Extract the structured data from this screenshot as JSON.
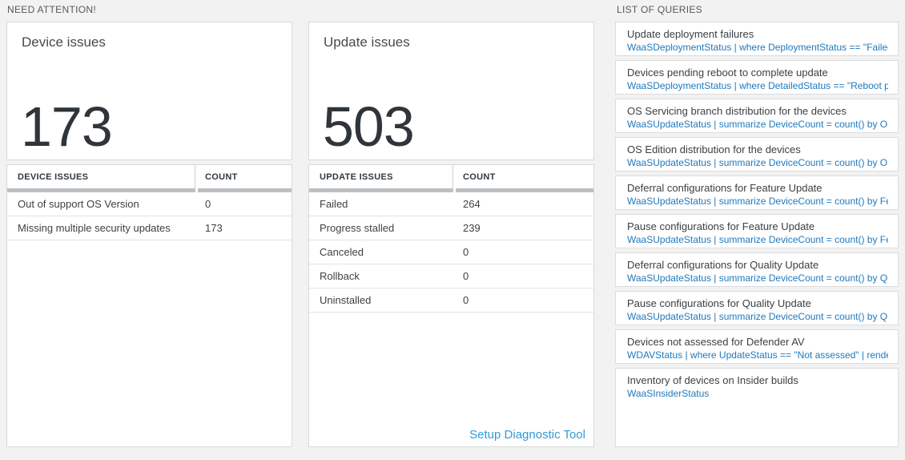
{
  "sections": {
    "need_attention_label": "NEED ATTENTION!",
    "queries_label": "LIST OF QUERIES"
  },
  "device_card": {
    "title": "Device issues",
    "count": "173",
    "table": {
      "headers": [
        "DEVICE ISSUES",
        "COUNT"
      ],
      "rows": [
        {
          "label": "Out of support OS Version",
          "count": "0"
        },
        {
          "label": "Missing multiple security updates",
          "count": "173"
        }
      ]
    }
  },
  "update_card": {
    "title": "Update issues",
    "count": "503",
    "table": {
      "headers": [
        "UPDATE ISSUES",
        "COUNT"
      ],
      "rows": [
        {
          "label": "Failed",
          "count": "264"
        },
        {
          "label": "Progress stalled",
          "count": "239"
        },
        {
          "label": "Canceled",
          "count": "0"
        },
        {
          "label": "Rollback",
          "count": "0"
        },
        {
          "label": "Uninstalled",
          "count": "0"
        }
      ]
    },
    "footer_link": "Setup Diagnostic Tool"
  },
  "queries": {
    "items": [
      {
        "title": "Update deployment failures",
        "query": "WaaSDeploymentStatus | where DeploymentStatus == \"Failed\" |..."
      },
      {
        "title": "Devices pending reboot to complete update",
        "query": "WaaSDeploymentStatus | where DetailedStatus == \"Reboot pend..."
      },
      {
        "title": "OS Servicing branch distribution for the devices",
        "query": "WaaSUpdateStatus | summarize DeviceCount = count() by OSSer..."
      },
      {
        "title": "OS Edition distribution for the devices",
        "query": "WaaSUpdateStatus | summarize DeviceCount = count() by OSEdit..."
      },
      {
        "title": "Deferral configurations for Feature Update",
        "query": "WaaSUpdateStatus | summarize DeviceCount = count() by Featur..."
      },
      {
        "title": "Pause configurations for Feature Update",
        "query": "WaaSUpdateStatus | summarize DeviceCount = count() by Featur..."
      },
      {
        "title": "Deferral configurations for Quality Update",
        "query": "WaaSUpdateStatus | summarize DeviceCount = count() by Qualit..."
      },
      {
        "title": "Pause configurations for Quality Update",
        "query": "WaaSUpdateStatus | summarize DeviceCount = count() by Qualit..."
      },
      {
        "title": "Devices not assessed for Defender AV",
        "query": "WDAVStatus | where UpdateStatus == \"Not assessed\" | render ta..."
      },
      {
        "title": "Inventory of devices on Insider builds",
        "query": "WaaSInsiderStatus"
      }
    ]
  },
  "colors": {
    "page_background": "#f2f2f2",
    "card_background": "#ffffff",
    "card_border": "#d9d9d9",
    "section_label_text": "#55585b",
    "big_number_text": "#2f353b",
    "table_thick_bar": "#bcc0c3",
    "query_link_blue": "#1f79bd",
    "setup_link_blue": "#2f9bda"
  }
}
